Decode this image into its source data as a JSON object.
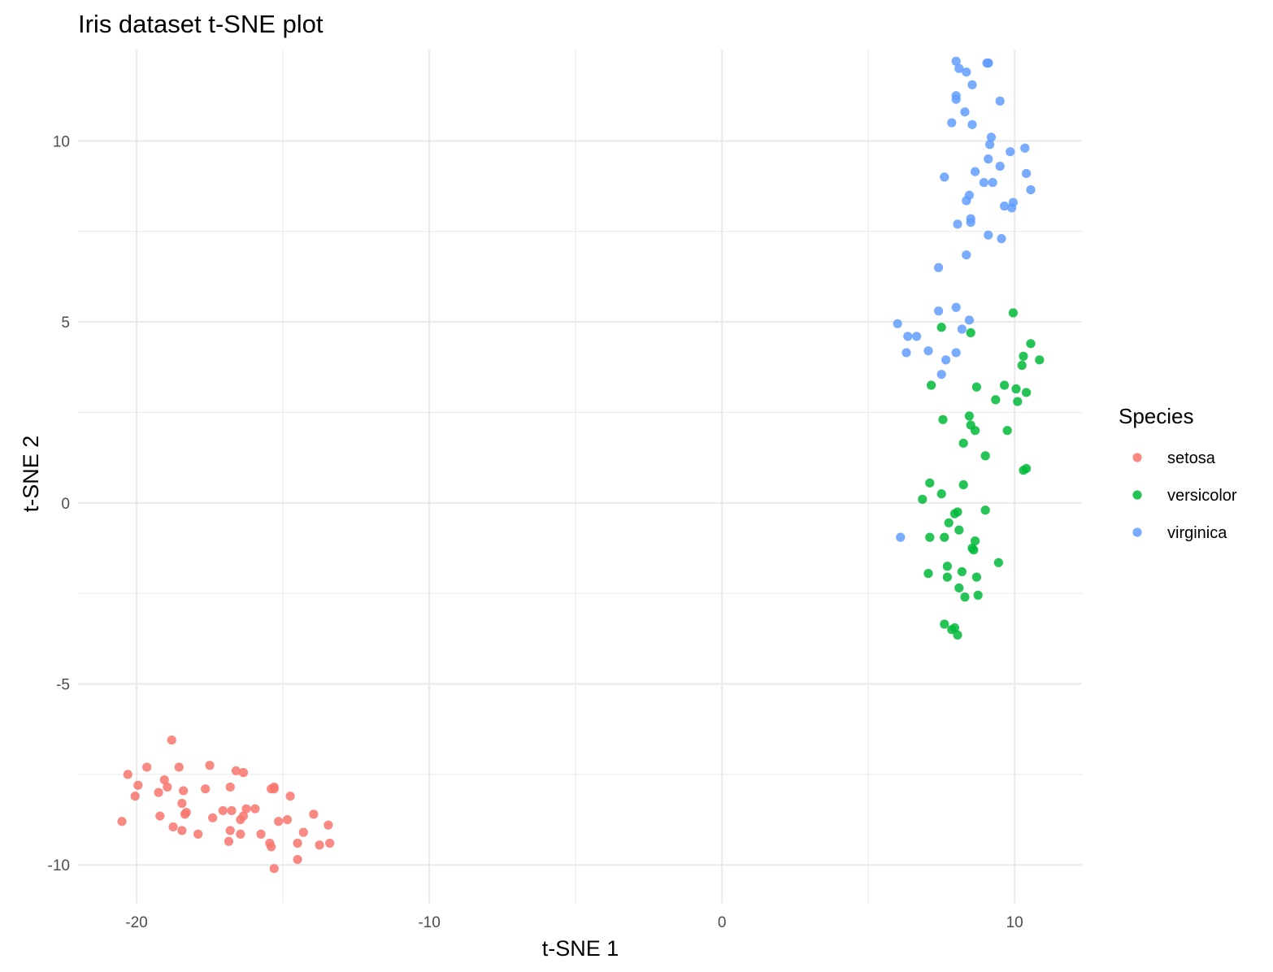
{
  "chart_data": {
    "type": "scatter",
    "title": "Iris dataset t-SNE plot",
    "xlabel": "t-SNE 1",
    "ylabel": "t-SNE 2",
    "xlim": [
      -22.0,
      12.3
    ],
    "ylim": [
      -11.05,
      12.5
    ],
    "x_major_ticks": [
      -20,
      -10,
      0,
      10
    ],
    "x_minor_ticks": [
      -15,
      -5,
      5
    ],
    "y_major_ticks": [
      -10,
      -5,
      0,
      5,
      10
    ],
    "y_minor_ticks": [
      -7.5,
      -2.5,
      2.5,
      7.5
    ],
    "x_tick_labels": [
      "-20",
      "-10",
      "0",
      "10"
    ],
    "y_tick_labels": [
      "-10",
      "-5",
      "0",
      "5",
      "10"
    ],
    "grid": true,
    "legend": {
      "title": "Species",
      "position": "right"
    },
    "series": [
      {
        "name": "setosa",
        "color": "#F8766D",
        "points": [
          [
            -20.5,
            -8.8
          ],
          [
            -20.3,
            -7.5
          ],
          [
            -20.05,
            -8.1
          ],
          [
            -19.95,
            -7.8
          ],
          [
            -19.65,
            -7.3
          ],
          [
            -19.25,
            -8.0
          ],
          [
            -19.2,
            -8.65
          ],
          [
            -19.05,
            -7.65
          ],
          [
            -18.95,
            -7.85
          ],
          [
            -18.8,
            -6.55
          ],
          [
            -18.75,
            -8.95
          ],
          [
            -18.55,
            -7.3
          ],
          [
            -18.45,
            -8.3
          ],
          [
            -18.45,
            -9.05
          ],
          [
            -18.4,
            -7.95
          ],
          [
            -18.35,
            -8.6
          ],
          [
            -18.3,
            -8.55
          ],
          [
            -17.9,
            -9.15
          ],
          [
            -17.65,
            -7.9
          ],
          [
            -17.5,
            -7.25
          ],
          [
            -17.4,
            -8.7
          ],
          [
            -17.05,
            -8.5
          ],
          [
            -16.8,
            -7.85
          ],
          [
            -16.8,
            -9.05
          ],
          [
            -16.75,
            -8.5
          ],
          [
            -16.85,
            -9.35
          ],
          [
            -16.6,
            -7.4
          ],
          [
            -16.45,
            -8.75
          ],
          [
            -16.45,
            -9.15
          ],
          [
            -16.35,
            -7.45
          ],
          [
            -16.35,
            -8.65
          ],
          [
            -16.25,
            -8.45
          ],
          [
            -15.95,
            -8.45
          ],
          [
            -15.75,
            -9.15
          ],
          [
            -15.45,
            -9.4
          ],
          [
            -15.4,
            -9.5
          ],
          [
            -15.4,
            -7.9
          ],
          [
            -15.3,
            -7.85
          ],
          [
            -15.3,
            -10.1
          ],
          [
            -15.15,
            -8.8
          ],
          [
            -14.85,
            -8.75
          ],
          [
            -14.75,
            -8.1
          ],
          [
            -14.5,
            -9.4
          ],
          [
            -14.5,
            -9.85
          ],
          [
            -14.3,
            -9.1
          ],
          [
            -13.95,
            -8.6
          ],
          [
            -13.75,
            -9.45
          ],
          [
            -13.45,
            -8.9
          ],
          [
            -13.4,
            -9.4
          ],
          [
            -15.3,
            -7.9
          ]
        ]
      },
      {
        "name": "versicolor",
        "color": "#00BA38",
        "points": [
          [
            9.95,
            5.25
          ],
          [
            7.5,
            4.85
          ],
          [
            8.5,
            4.7
          ],
          [
            10.55,
            4.4
          ],
          [
            10.3,
            4.05
          ],
          [
            10.85,
            3.95
          ],
          [
            10.25,
            3.8
          ],
          [
            7.15,
            3.25
          ],
          [
            8.7,
            3.2
          ],
          [
            9.65,
            3.25
          ],
          [
            10.05,
            3.15
          ],
          [
            10.4,
            3.05
          ],
          [
            9.35,
            2.85
          ],
          [
            10.1,
            2.8
          ],
          [
            8.45,
            2.4
          ],
          [
            7.55,
            2.3
          ],
          [
            8.5,
            2.15
          ],
          [
            8.65,
            2.0
          ],
          [
            9.75,
            2.0
          ],
          [
            8.25,
            1.65
          ],
          [
            9.0,
            1.3
          ],
          [
            10.4,
            0.95
          ],
          [
            10.3,
            0.9
          ],
          [
            7.1,
            0.55
          ],
          [
            8.25,
            0.5
          ],
          [
            7.5,
            0.25
          ],
          [
            6.85,
            0.1
          ],
          [
            8.05,
            -0.25
          ],
          [
            7.95,
            -0.3
          ],
          [
            9.0,
            -0.2
          ],
          [
            7.75,
            -0.55
          ],
          [
            8.1,
            -0.75
          ],
          [
            7.1,
            -0.95
          ],
          [
            7.6,
            -0.95
          ],
          [
            8.65,
            -1.05
          ],
          [
            8.55,
            -1.25
          ],
          [
            8.6,
            -1.3
          ],
          [
            7.7,
            -1.75
          ],
          [
            9.45,
            -1.65
          ],
          [
            8.2,
            -1.9
          ],
          [
            7.05,
            -1.95
          ],
          [
            7.7,
            -2.05
          ],
          [
            8.7,
            -2.05
          ],
          [
            8.1,
            -2.35
          ],
          [
            8.3,
            -2.6
          ],
          [
            8.75,
            -2.55
          ],
          [
            7.6,
            -3.35
          ],
          [
            7.85,
            -3.5
          ],
          [
            7.95,
            -3.45
          ],
          [
            8.05,
            -3.65
          ]
        ]
      },
      {
        "name": "virginica",
        "color": "#619CFF",
        "points": [
          [
            8.0,
            12.2
          ],
          [
            8.1,
            12.0
          ],
          [
            9.05,
            12.15
          ],
          [
            9.1,
            12.15
          ],
          [
            8.35,
            11.9
          ],
          [
            8.55,
            11.55
          ],
          [
            8.0,
            11.25
          ],
          [
            8.0,
            11.15
          ],
          [
            9.5,
            11.1
          ],
          [
            8.3,
            10.8
          ],
          [
            7.85,
            10.5
          ],
          [
            8.55,
            10.45
          ],
          [
            9.2,
            10.1
          ],
          [
            9.15,
            9.9
          ],
          [
            10.35,
            9.8
          ],
          [
            9.85,
            9.7
          ],
          [
            9.1,
            9.5
          ],
          [
            9.5,
            9.3
          ],
          [
            8.65,
            9.15
          ],
          [
            10.4,
            9.1
          ],
          [
            7.6,
            9.0
          ],
          [
            8.95,
            8.85
          ],
          [
            9.25,
            8.85
          ],
          [
            10.55,
            8.65
          ],
          [
            8.45,
            8.5
          ],
          [
            8.35,
            8.35
          ],
          [
            9.95,
            8.3
          ],
          [
            9.65,
            8.2
          ],
          [
            9.9,
            8.15
          ],
          [
            8.5,
            7.85
          ],
          [
            8.5,
            7.75
          ],
          [
            8.05,
            7.7
          ],
          [
            9.1,
            7.4
          ],
          [
            9.55,
            7.3
          ],
          [
            8.35,
            6.85
          ],
          [
            7.4,
            6.5
          ],
          [
            8.0,
            5.4
          ],
          [
            7.4,
            5.3
          ],
          [
            8.45,
            5.05
          ],
          [
            6.0,
            4.95
          ],
          [
            8.2,
            4.8
          ],
          [
            6.35,
            4.6
          ],
          [
            6.65,
            4.6
          ],
          [
            7.05,
            4.2
          ],
          [
            6.3,
            4.15
          ],
          [
            8.0,
            4.15
          ],
          [
            7.65,
            3.95
          ],
          [
            7.5,
            3.55
          ],
          [
            6.1,
            -0.95
          ],
          [
            9.1,
            12.15
          ]
        ]
      }
    ]
  }
}
